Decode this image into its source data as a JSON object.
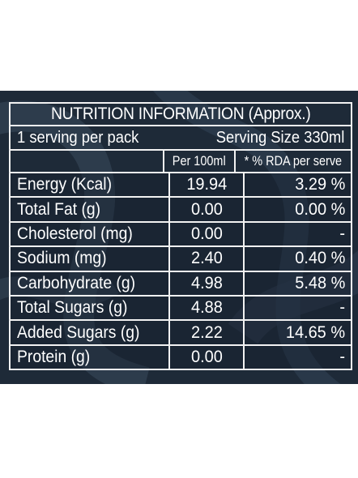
{
  "title": "NUTRITION INFORMATION (Approx.)",
  "serving": {
    "per_pack": "1 serving per pack",
    "size": "Serving Size 330ml"
  },
  "columns": {
    "per_100": "Per 100ml",
    "rda": "* % RDA per serve"
  },
  "rows": [
    {
      "name": "Energy (Kcal)",
      "per100": "19.94",
      "rda": "3.29 %"
    },
    {
      "name": "Total Fat (g)",
      "per100": "0.00",
      "rda": "0.00 %"
    },
    {
      "name": "Cholesterol (mg)",
      "per100": "0.00",
      "rda": "-"
    },
    {
      "name": "Sodium (mg)",
      "per100": "2.40",
      "rda": "0.40 %"
    },
    {
      "name": "Carbohydrate (g)",
      "per100": "4.98",
      "rda": "5.48 %"
    },
    {
      "name": "Total Sugars (g)",
      "per100": "4.88",
      "rda": "-"
    },
    {
      "name": "Added Sugars (g)",
      "per100": "2.22",
      "rda": "14.65 %"
    },
    {
      "name": "Protein (g)",
      "per100": "0.00",
      "rda": "-"
    }
  ],
  "colors": {
    "background": "#1e2a38",
    "text": "#ffffff",
    "page": "#ffffff"
  }
}
